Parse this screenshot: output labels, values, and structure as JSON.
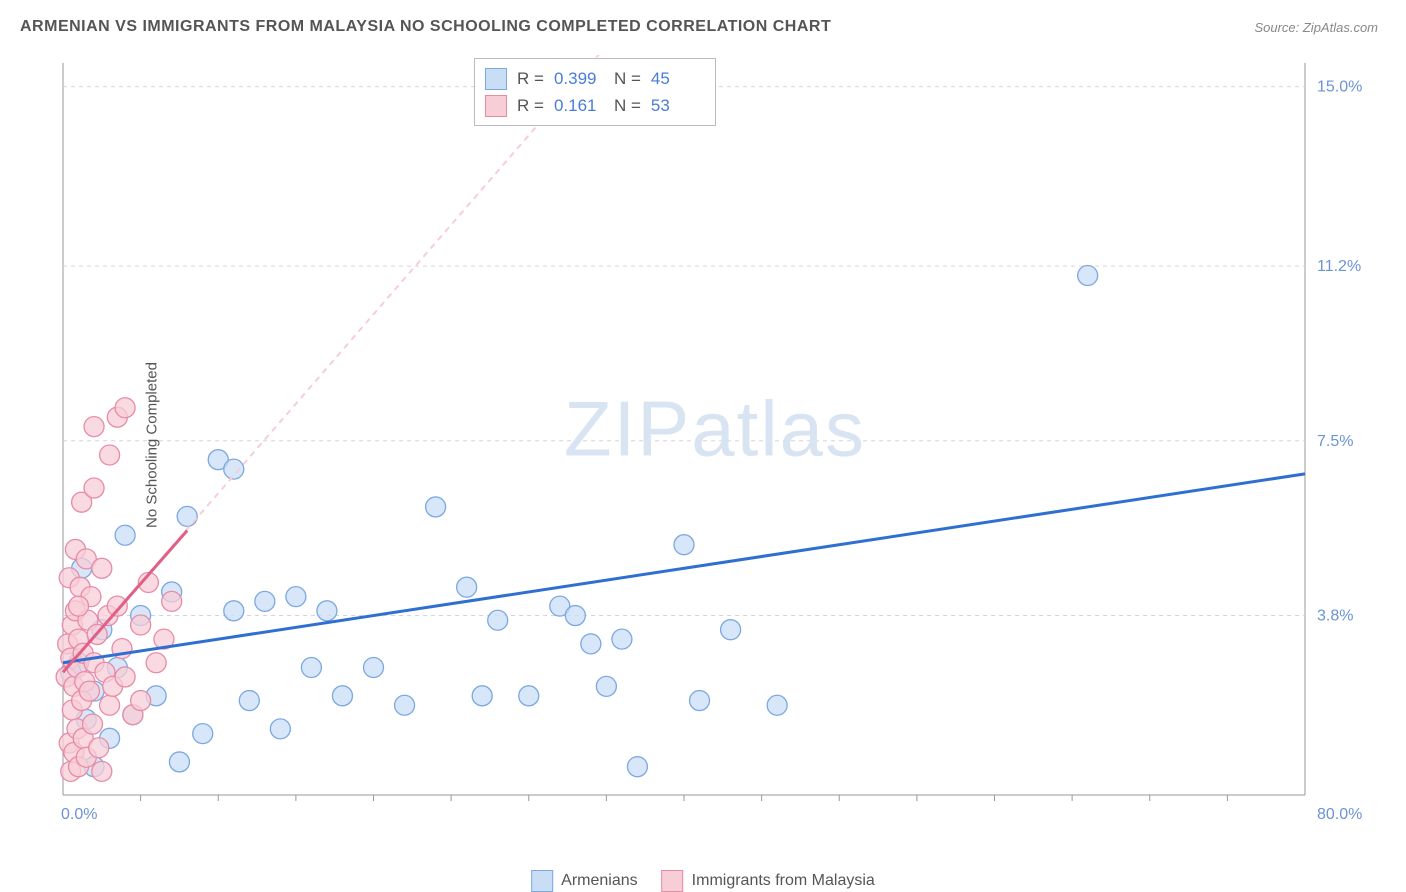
{
  "title": "ARMENIAN VS IMMIGRANTS FROM MALAYSIA NO SCHOOLING COMPLETED CORRELATION CHART",
  "source": "Source: ZipAtlas.com",
  "y_axis_label": "No Schooling Completed",
  "watermark": "ZIPatlas",
  "chart": {
    "type": "scatter",
    "plot_bg": "#ffffff",
    "border_color": "#999999",
    "xlim": [
      0,
      80
    ],
    "ylim": [
      0,
      15.5
    ],
    "x_origin_label": "0.0%",
    "x_max_label": "80.0%",
    "y_ticks": [
      3.8,
      7.5,
      11.2,
      15.0
    ],
    "y_tick_labels": [
      "3.8%",
      "7.5%",
      "11.2%",
      "15.0%"
    ],
    "y_tick_color": "#6b93d6",
    "grid_color": "#d5d5d5",
    "grid_dash": "4,4",
    "x_minor_ticks": [
      5,
      10,
      15,
      20,
      25,
      30,
      35,
      40,
      45,
      50,
      55,
      60,
      65,
      70,
      75
    ],
    "series": [
      {
        "name": "Armenians",
        "marker_fill": "#c9ddf5",
        "marker_stroke": "#7ba8e0",
        "marker_opacity": 0.75,
        "marker_radius": 10,
        "trend_color": "#2f6fd0",
        "trend_width": 3,
        "trend_from": [
          0,
          2.8
        ],
        "trend_to": [
          80,
          6.8
        ],
        "r_value": "0.399",
        "n_value": "45",
        "points": [
          [
            1,
            2.8
          ],
          [
            1.5,
            1.6
          ],
          [
            2,
            2.2
          ],
          [
            2,
            0.6
          ],
          [
            2.5,
            3.5
          ],
          [
            3,
            1.2
          ],
          [
            3.5,
            2.7
          ],
          [
            4,
            5.5
          ],
          [
            4.5,
            1.7
          ],
          [
            5,
            3.8
          ],
          [
            6,
            2.1
          ],
          [
            7,
            4.3
          ],
          [
            7.5,
            0.7
          ],
          [
            8,
            5.9
          ],
          [
            9,
            1.3
          ],
          [
            10,
            7.1
          ],
          [
            11,
            3.9
          ],
          [
            11,
            6.9
          ],
          [
            12,
            2.0
          ],
          [
            13,
            4.1
          ],
          [
            14,
            1.4
          ],
          [
            15,
            4.2
          ],
          [
            16,
            2.7
          ],
          [
            17,
            3.9
          ],
          [
            18,
            2.1
          ],
          [
            20,
            2.7
          ],
          [
            22,
            1.9
          ],
          [
            24,
            6.1
          ],
          [
            26,
            4.4
          ],
          [
            27,
            2.1
          ],
          [
            28,
            3.7
          ],
          [
            30,
            2.1
          ],
          [
            32,
            4.0
          ],
          [
            33,
            3.8
          ],
          [
            34,
            3.2
          ],
          [
            35,
            2.3
          ],
          [
            36,
            3.3
          ],
          [
            37,
            0.6
          ],
          [
            40,
            5.3
          ],
          [
            41,
            2.0
          ],
          [
            43,
            3.5
          ],
          [
            46,
            1.9
          ],
          [
            66,
            11.0
          ],
          [
            0.5,
            2.6
          ],
          [
            1.2,
            4.8
          ]
        ]
      },
      {
        "name": "Immigrants from Malaysia",
        "marker_fill": "#f7cdd8",
        "marker_stroke": "#e88ba5",
        "marker_opacity": 0.75,
        "marker_radius": 10,
        "trend_color": "#e15f86",
        "trend_width": 3,
        "trend_dash": "6,5",
        "trend_from": [
          0,
          2.6
        ],
        "trend_to": [
          8,
          5.6
        ],
        "trend_ext_to": [
          38,
          17
        ],
        "r_value": "0.161",
        "n_value": "53",
        "points": [
          [
            0.2,
            2.5
          ],
          [
            0.3,
            3.2
          ],
          [
            0.4,
            1.1
          ],
          [
            0.4,
            4.6
          ],
          [
            0.5,
            0.5
          ],
          [
            0.5,
            2.9
          ],
          [
            0.6,
            1.8
          ],
          [
            0.6,
            3.6
          ],
          [
            0.7,
            0.9
          ],
          [
            0.7,
            2.3
          ],
          [
            0.8,
            3.9
          ],
          [
            0.8,
            5.2
          ],
          [
            0.9,
            1.4
          ],
          [
            0.9,
            2.7
          ],
          [
            1.0,
            0.6
          ],
          [
            1.0,
            3.3
          ],
          [
            1.1,
            4.4
          ],
          [
            1.2,
            2.0
          ],
          [
            1.2,
            6.2
          ],
          [
            1.3,
            1.2
          ],
          [
            1.3,
            3.0
          ],
          [
            1.4,
            2.4
          ],
          [
            1.5,
            5.0
          ],
          [
            1.5,
            0.8
          ],
          [
            1.6,
            3.7
          ],
          [
            1.7,
            2.2
          ],
          [
            1.8,
            4.2
          ],
          [
            1.9,
            1.5
          ],
          [
            2.0,
            2.8
          ],
          [
            2.0,
            6.5
          ],
          [
            2.2,
            3.4
          ],
          [
            2.3,
            1.0
          ],
          [
            2.5,
            4.8
          ],
          [
            2.5,
            0.5
          ],
          [
            2.7,
            2.6
          ],
          [
            2.9,
            3.8
          ],
          [
            3.0,
            1.9
          ],
          [
            3.0,
            7.2
          ],
          [
            3.2,
            2.3
          ],
          [
            3.5,
            4.0
          ],
          [
            3.5,
            8.0
          ],
          [
            3.8,
            3.1
          ],
          [
            4.0,
            2.5
          ],
          [
            4.0,
            8.2
          ],
          [
            4.5,
            1.7
          ],
          [
            5.0,
            3.6
          ],
          [
            5.0,
            2.0
          ],
          [
            5.5,
            4.5
          ],
          [
            6.0,
            2.8
          ],
          [
            6.5,
            3.3
          ],
          [
            7.0,
            4.1
          ],
          [
            2.0,
            7.8
          ],
          [
            1.0,
            4.0
          ]
        ]
      }
    ]
  },
  "stats_box": {
    "rows": [
      {
        "swatch_fill": "#c9ddf5",
        "swatch_stroke": "#7ba8e0",
        "r": "0.399",
        "n": "45"
      },
      {
        "swatch_fill": "#f7cdd8",
        "swatch_stroke": "#e88ba5",
        "r": "0.161",
        "n": "53"
      }
    ],
    "r_label": "R =",
    "n_label": "N ="
  },
  "legend": {
    "items": [
      {
        "swatch_fill": "#c9ddf5",
        "swatch_stroke": "#7ba8e0",
        "label": "Armenians"
      },
      {
        "swatch_fill": "#f7cdd8",
        "swatch_stroke": "#e88ba5",
        "label": "Immigrants from Malaysia"
      }
    ]
  }
}
